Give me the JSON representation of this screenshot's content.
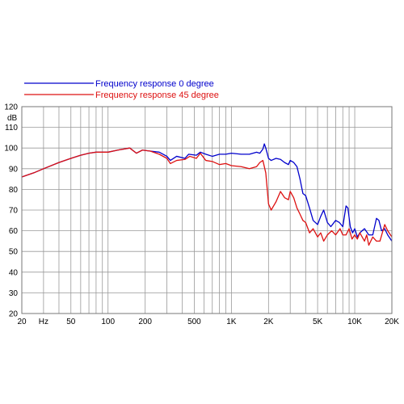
{
  "chart_data": {
    "type": "line",
    "title": "",
    "xlabel": "",
    "ylabel": "dB",
    "x_unit_label": "Hz",
    "xscale": "log",
    "xlim": [
      20,
      20000
    ],
    "ylim": [
      20,
      120
    ],
    "grid": true,
    "legend_position": "top-left",
    "x_tick_labels": [
      {
        "value": 20,
        "label": "20"
      },
      {
        "value": 50,
        "label": "50"
      },
      {
        "value": 100,
        "label": "100"
      },
      {
        "value": 200,
        "label": "200"
      },
      {
        "value": 500,
        "label": "500"
      },
      {
        "value": 1000,
        "label": "1K"
      },
      {
        "value": 2000,
        "label": "2K"
      },
      {
        "value": 5000,
        "label": "5K"
      },
      {
        "value": 10000,
        "label": "10K"
      },
      {
        "value": 20000,
        "label": "20K"
      }
    ],
    "y_ticks": [
      20,
      30,
      40,
      50,
      60,
      70,
      80,
      90,
      100,
      110,
      120
    ],
    "series": [
      {
        "name": "Frequency response 0 degree",
        "color": "#0000cc",
        "points": [
          [
            20,
            86
          ],
          [
            25,
            88
          ],
          [
            30,
            90
          ],
          [
            40,
            93
          ],
          [
            50,
            95
          ],
          [
            60,
            96.5
          ],
          [
            70,
            97.5
          ],
          [
            80,
            98
          ],
          [
            100,
            98
          ],
          [
            120,
            99
          ],
          [
            150,
            100
          ],
          [
            170,
            97.5
          ],
          [
            190,
            99
          ],
          [
            220,
            98.5
          ],
          [
            260,
            98
          ],
          [
            300,
            96
          ],
          [
            320,
            94
          ],
          [
            360,
            96
          ],
          [
            420,
            95
          ],
          [
            450,
            97
          ],
          [
            520,
            96.5
          ],
          [
            560,
            98
          ],
          [
            620,
            97
          ],
          [
            700,
            96
          ],
          [
            800,
            97
          ],
          [
            900,
            97
          ],
          [
            1000,
            97.5
          ],
          [
            1200,
            97
          ],
          [
            1400,
            97
          ],
          [
            1600,
            98
          ],
          [
            1700,
            97.5
          ],
          [
            1800,
            99.5
          ],
          [
            1850,
            102
          ],
          [
            1900,
            100
          ],
          [
            2000,
            95
          ],
          [
            2100,
            94
          ],
          [
            2300,
            95
          ],
          [
            2500,
            94.5
          ],
          [
            2700,
            93
          ],
          [
            2900,
            92
          ],
          [
            3000,
            94
          ],
          [
            3200,
            93
          ],
          [
            3400,
            91
          ],
          [
            3600,
            85
          ],
          [
            3800,
            78
          ],
          [
            4000,
            77
          ],
          [
            4300,
            71
          ],
          [
            4600,
            65
          ],
          [
            5000,
            63
          ],
          [
            5300,
            67
          ],
          [
            5600,
            70
          ],
          [
            6000,
            64
          ],
          [
            6400,
            62
          ],
          [
            7000,
            65
          ],
          [
            7500,
            64
          ],
          [
            8000,
            62
          ],
          [
            8500,
            72
          ],
          [
            8800,
            71
          ],
          [
            9200,
            62
          ],
          [
            9600,
            59
          ],
          [
            10000,
            61
          ],
          [
            10500,
            57
          ],
          [
            11000,
            59
          ],
          [
            12000,
            61
          ],
          [
            13000,
            58
          ],
          [
            14000,
            58
          ],
          [
            15000,
            66
          ],
          [
            15700,
            65
          ],
          [
            16500,
            60
          ],
          [
            17500,
            61
          ],
          [
            18500,
            58
          ],
          [
            20000,
            55
          ]
        ]
      },
      {
        "name": "Frequency response 45 degree",
        "color": "#dd1111",
        "points": [
          [
            20,
            86
          ],
          [
            25,
            88
          ],
          [
            30,
            90
          ],
          [
            40,
            93
          ],
          [
            50,
            95
          ],
          [
            60,
            96.5
          ],
          [
            70,
            97.5
          ],
          [
            80,
            98
          ],
          [
            100,
            98
          ],
          [
            120,
            99
          ],
          [
            150,
            100
          ],
          [
            170,
            97.5
          ],
          [
            190,
            99
          ],
          [
            220,
            98.5
          ],
          [
            260,
            97
          ],
          [
            300,
            95
          ],
          [
            320,
            92.5
          ],
          [
            360,
            94
          ],
          [
            420,
            94.5
          ],
          [
            460,
            96
          ],
          [
            520,
            95
          ],
          [
            560,
            97.5
          ],
          [
            620,
            94
          ],
          [
            700,
            93.5
          ],
          [
            800,
            92
          ],
          [
            900,
            92.5
          ],
          [
            1000,
            91.5
          ],
          [
            1200,
            91
          ],
          [
            1400,
            90
          ],
          [
            1600,
            91
          ],
          [
            1700,
            93
          ],
          [
            1800,
            94
          ],
          [
            1900,
            88
          ],
          [
            2000,
            73
          ],
          [
            2100,
            70
          ],
          [
            2300,
            74
          ],
          [
            2500,
            79
          ],
          [
            2700,
            76
          ],
          [
            2900,
            75
          ],
          [
            3000,
            79
          ],
          [
            3200,
            76
          ],
          [
            3400,
            71
          ],
          [
            3600,
            68
          ],
          [
            3800,
            65
          ],
          [
            4000,
            64
          ],
          [
            4300,
            59
          ],
          [
            4600,
            61
          ],
          [
            5000,
            57
          ],
          [
            5300,
            59
          ],
          [
            5600,
            55
          ],
          [
            6000,
            58
          ],
          [
            6500,
            60
          ],
          [
            7000,
            58
          ],
          [
            7600,
            61
          ],
          [
            8000,
            58
          ],
          [
            8500,
            58
          ],
          [
            9000,
            61
          ],
          [
            9500,
            56
          ],
          [
            10000,
            58
          ],
          [
            10500,
            56
          ],
          [
            11000,
            59
          ],
          [
            12000,
            55
          ],
          [
            12500,
            58
          ],
          [
            13000,
            53
          ],
          [
            14000,
            57
          ],
          [
            15000,
            55
          ],
          [
            16000,
            55
          ],
          [
            17500,
            63
          ],
          [
            18500,
            60
          ],
          [
            20000,
            57
          ]
        ]
      }
    ]
  }
}
